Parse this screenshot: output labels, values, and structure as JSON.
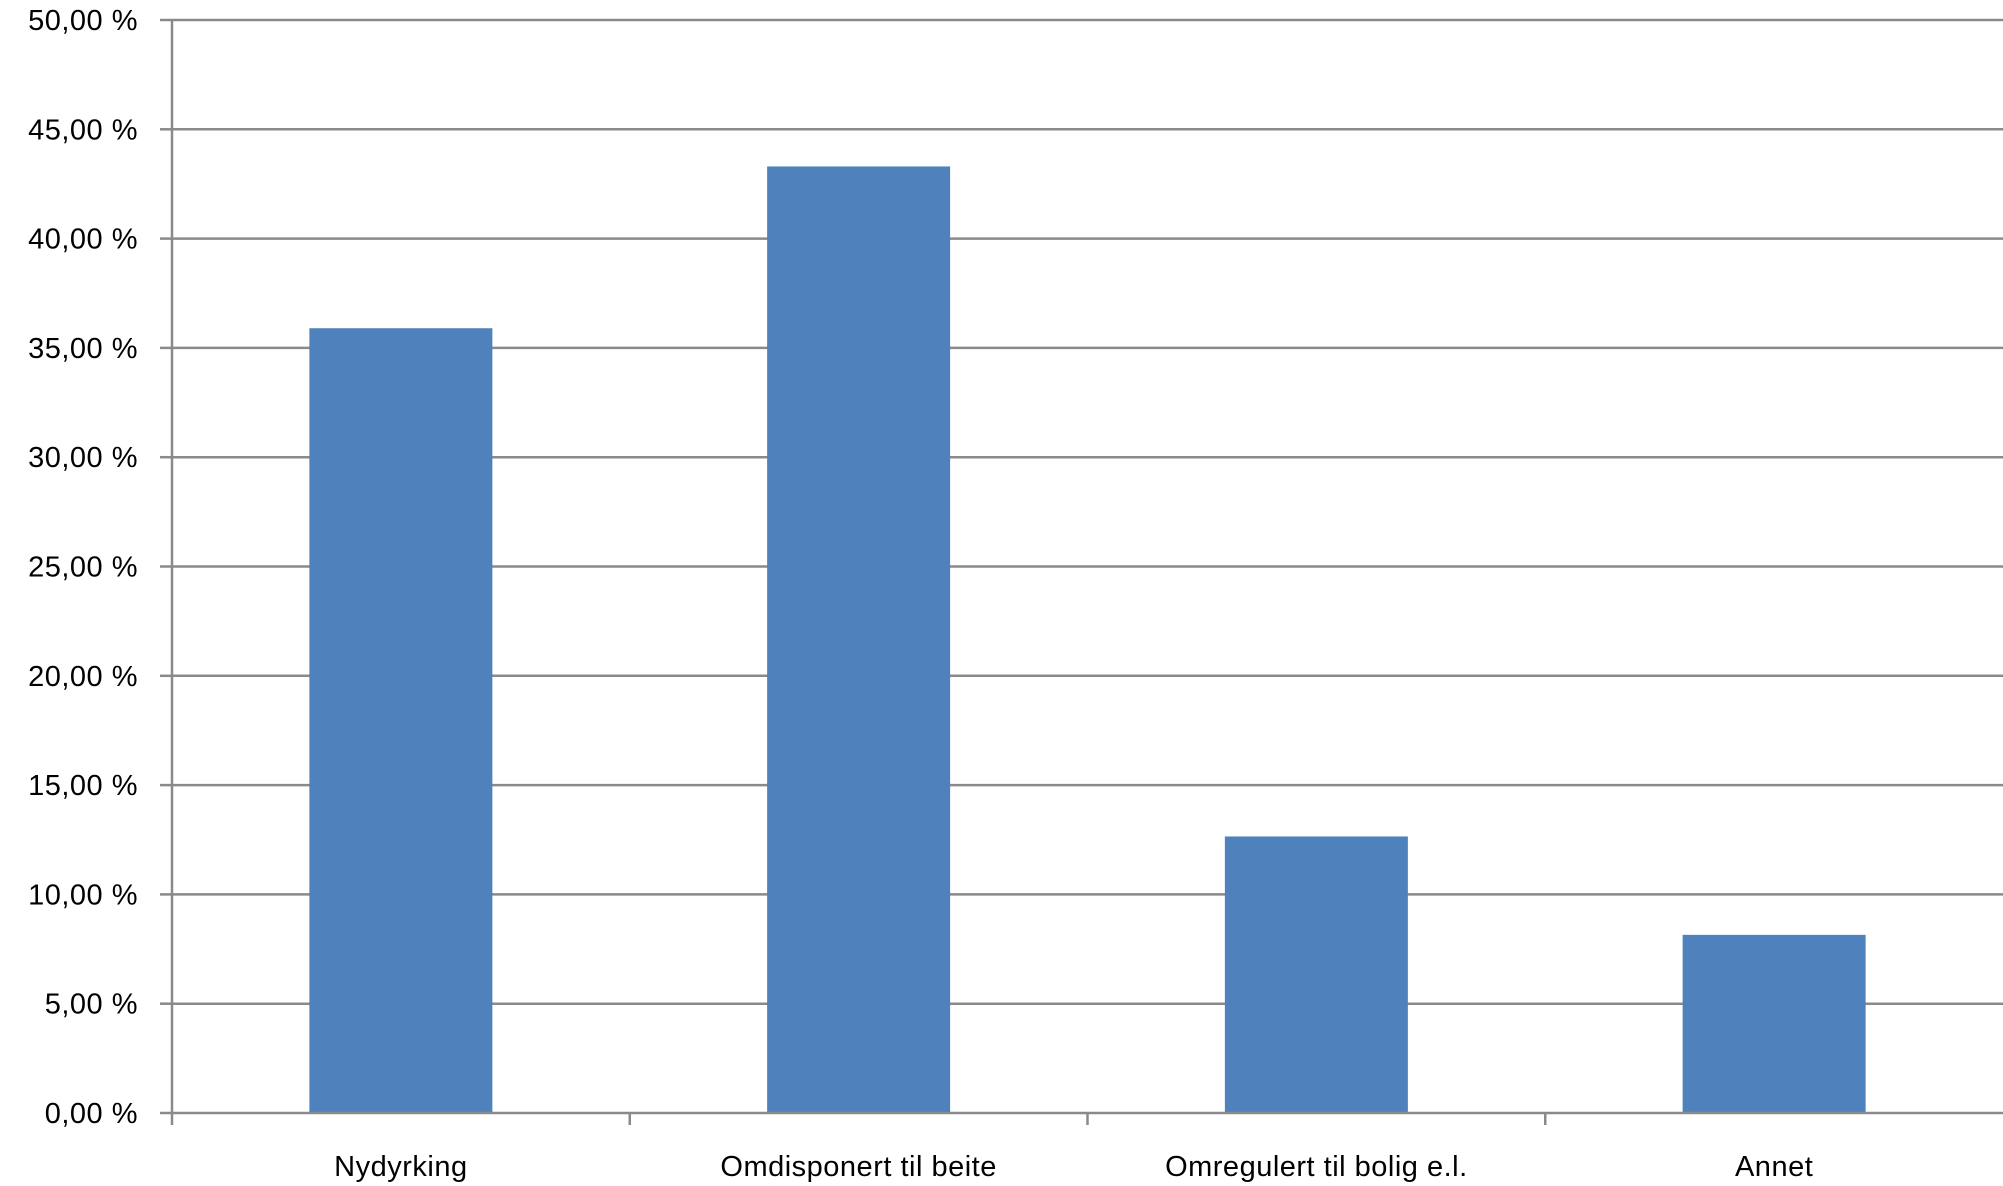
{
  "chart_data": {
    "type": "bar",
    "title": "",
    "xlabel": "",
    "ylabel": "",
    "categories": [
      "Nydyrking",
      "Omdisponert til beite",
      "Omregulert til bolig e.l.",
      "Annet"
    ],
    "values": [
      35.9,
      43.3,
      12.65,
      8.15
    ],
    "ylim": [
      0,
      50
    ],
    "y_ticks": [
      0,
      5,
      10,
      15,
      20,
      25,
      30,
      35,
      40,
      45,
      50
    ],
    "y_tick_labels": [
      "0,00 %",
      "5,00 %",
      "10,00 %",
      "15,00 %",
      "20,00 %",
      "25,00 %",
      "30,00 %",
      "35,00 %",
      "40,00 %",
      "45,00 %",
      "50,00 %"
    ],
    "grid": true,
    "legend": "none",
    "bar_color": "#4f81bd",
    "grid_color": "#8a8a8a"
  }
}
